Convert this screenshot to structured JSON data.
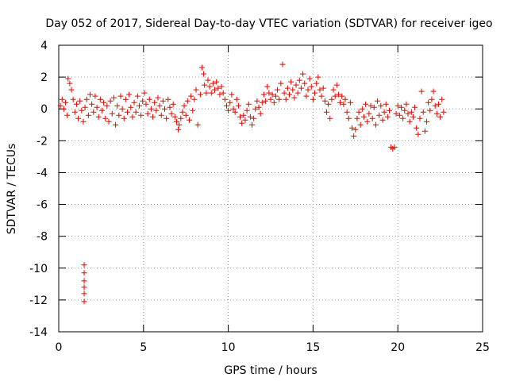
{
  "chart_data": {
    "type": "scatter",
    "title": "Day 052 of 2017, Sidereal Day-to-day VTEC variation (SDTVAR) for receiver igeo",
    "xlabel": "GPS time / hours",
    "ylabel": "SDTVAR / TECUs",
    "xlim": [
      0,
      25
    ],
    "ylim": [
      -14,
      4
    ],
    "xticks": [
      0,
      5,
      10,
      15,
      20,
      25
    ],
    "yticks": [
      -14,
      -12,
      -10,
      -8,
      -6,
      -4,
      -2,
      0,
      2,
      4
    ],
    "grid": true,
    "marker": "+",
    "color": "#ee0000",
    "series": [
      {
        "name": "SDTVAR",
        "points": [
          [
            0.1,
            0.2
          ],
          [
            0.2,
            0.6
          ],
          [
            0.3,
            0.0
          ],
          [
            0.4,
            0.4
          ],
          [
            0.5,
            -0.4
          ],
          [
            0.55,
            1.9
          ],
          [
            0.65,
            1.6
          ],
          [
            0.75,
            1.2
          ],
          [
            0.85,
            0.6
          ],
          [
            0.95,
            -0.2
          ],
          [
            1.05,
            0.3
          ],
          [
            1.15,
            -0.6
          ],
          [
            1.25,
            0.5
          ],
          [
            1.35,
            -0.1
          ],
          [
            1.45,
            -0.8
          ],
          [
            1.5,
            -9.8
          ],
          [
            1.5,
            -10.3
          ],
          [
            1.5,
            -10.8
          ],
          [
            1.5,
            -11.2
          ],
          [
            1.5,
            -11.6
          ],
          [
            1.5,
            -12.1
          ],
          [
            1.55,
            0.1
          ],
          [
            1.65,
            0.6
          ],
          [
            1.75,
            -0.4
          ],
          [
            1.85,
            0.9
          ],
          [
            1.95,
            0.3
          ],
          [
            2.05,
            -0.2
          ],
          [
            2.15,
            0.8
          ],
          [
            2.25,
            0.1
          ],
          [
            2.35,
            -0.5
          ],
          [
            2.45,
            0.6
          ],
          [
            2.55,
            -0.1
          ],
          [
            2.65,
            0.4
          ],
          [
            2.75,
            -0.6
          ],
          [
            2.85,
            0.2
          ],
          [
            2.95,
            -0.8
          ],
          [
            3.05,
            0.5
          ],
          [
            3.15,
            -0.3
          ],
          [
            3.25,
            0.7
          ],
          [
            3.35,
            -1.0
          ],
          [
            3.45,
            0.2
          ],
          [
            3.55,
            -0.4
          ],
          [
            3.65,
            0.8
          ],
          [
            3.75,
            0.0
          ],
          [
            3.85,
            -0.6
          ],
          [
            3.95,
            0.6
          ],
          [
            4.05,
            -0.2
          ],
          [
            4.15,
            0.9
          ],
          [
            4.25,
            0.1
          ],
          [
            4.35,
            -0.5
          ],
          [
            4.45,
            0.4
          ],
          [
            4.55,
            -0.2
          ],
          [
            4.65,
            0.8
          ],
          [
            4.75,
            0.2
          ],
          [
            4.85,
            -0.4
          ],
          [
            4.95,
            0.5
          ],
          [
            5.05,
            1.0
          ],
          [
            5.15,
            0.3
          ],
          [
            5.25,
            -0.3
          ],
          [
            5.35,
            0.6
          ],
          [
            5.45,
            0.0
          ],
          [
            5.55,
            -0.5
          ],
          [
            5.65,
            0.4
          ],
          [
            5.75,
            -0.1
          ],
          [
            5.85,
            0.7
          ],
          [
            5.95,
            0.2
          ],
          [
            6.05,
            -0.4
          ],
          [
            6.15,
            0.5
          ],
          [
            6.25,
            0.0
          ],
          [
            6.35,
            -0.6
          ],
          [
            6.45,
            0.6
          ],
          [
            6.55,
            0.1
          ],
          [
            6.65,
            -0.3
          ],
          [
            6.75,
            0.3
          ],
          [
            6.85,
            -0.5
          ],
          [
            6.95,
            -0.8
          ],
          [
            7.05,
            -1.3
          ],
          [
            7.1,
            -1.0
          ],
          [
            7.2,
            -0.6
          ],
          [
            7.3,
            -0.2
          ],
          [
            7.4,
            0.2
          ],
          [
            7.5,
            -0.4
          ],
          [
            7.6,
            0.5
          ],
          [
            7.7,
            -0.7
          ],
          [
            7.8,
            0.8
          ],
          [
            7.9,
            -0.1
          ],
          [
            8.0,
            0.6
          ],
          [
            8.1,
            1.2
          ],
          [
            8.2,
            -1.0
          ],
          [
            8.35,
            0.9
          ],
          [
            8.45,
            2.6
          ],
          [
            8.55,
            2.2
          ],
          [
            8.6,
            1.5
          ],
          [
            8.7,
            1.0
          ],
          [
            8.8,
            1.8
          ],
          [
            8.9,
            1.4
          ],
          [
            9.0,
            1.0
          ],
          [
            9.1,
            1.6
          ],
          [
            9.2,
            1.2
          ],
          [
            9.3,
            1.7
          ],
          [
            9.4,
            1.3
          ],
          [
            9.5,
            0.9
          ],
          [
            9.6,
            1.4
          ],
          [
            9.7,
            1.0
          ],
          [
            9.8,
            0.6
          ],
          [
            9.9,
            0.2
          ],
          [
            10.0,
            -0.1
          ],
          [
            10.1,
            0.4
          ],
          [
            10.2,
            0.9
          ],
          [
            10.3,
            0.0
          ],
          [
            10.4,
            -0.2
          ],
          [
            10.5,
            0.6
          ],
          [
            10.6,
            0.2
          ],
          [
            10.7,
            -0.5
          ],
          [
            10.8,
            -0.9
          ],
          [
            10.9,
            -0.4
          ],
          [
            11.0,
            -0.7
          ],
          [
            11.1,
            -0.1
          ],
          [
            11.2,
            0.3
          ],
          [
            11.3,
            -0.5
          ],
          [
            11.4,
            -1.0
          ],
          [
            11.5,
            -0.6
          ],
          [
            11.6,
            0.0
          ],
          [
            11.7,
            0.5
          ],
          [
            11.8,
            0.1
          ],
          [
            11.9,
            -0.3
          ],
          [
            12.0,
            0.4
          ],
          [
            12.1,
            0.9
          ],
          [
            12.2,
            0.5
          ],
          [
            12.3,
            1.4
          ],
          [
            12.4,
            1.0
          ],
          [
            12.5,
            0.6
          ],
          [
            12.6,
            0.9
          ],
          [
            12.7,
            0.4
          ],
          [
            12.8,
            0.8
          ],
          [
            12.9,
            1.2
          ],
          [
            13.0,
            0.6
          ],
          [
            13.1,
            1.6
          ],
          [
            13.2,
            2.8
          ],
          [
            13.3,
            1.0
          ],
          [
            13.4,
            0.6
          ],
          [
            13.5,
            1.3
          ],
          [
            13.6,
            0.9
          ],
          [
            13.7,
            1.7
          ],
          [
            13.8,
            1.2
          ],
          [
            13.9,
            0.7
          ],
          [
            14.0,
            1.5
          ],
          [
            14.1,
            1.0
          ],
          [
            14.2,
            1.8
          ],
          [
            14.3,
            1.3
          ],
          [
            14.4,
            2.2
          ],
          [
            14.5,
            1.6
          ],
          [
            14.6,
            0.8
          ],
          [
            14.7,
            1.2
          ],
          [
            14.8,
            1.9
          ],
          [
            14.9,
            1.4
          ],
          [
            15.0,
            0.6
          ],
          [
            15.1,
            1.0
          ],
          [
            15.2,
            1.6
          ],
          [
            15.3,
            2.0
          ],
          [
            15.4,
            1.2
          ],
          [
            15.5,
            0.8
          ],
          [
            15.6,
            1.3
          ],
          [
            15.7,
            0.5
          ],
          [
            15.8,
            -0.2
          ],
          [
            15.9,
            0.3
          ],
          [
            16.0,
            -0.6
          ],
          [
            16.1,
            0.6
          ],
          [
            16.2,
            1.2
          ],
          [
            16.3,
            0.8
          ],
          [
            16.4,
            1.5
          ],
          [
            16.5,
            0.9
          ],
          [
            16.6,
            0.4
          ],
          [
            16.7,
            0.8
          ],
          [
            16.8,
            0.3
          ],
          [
            16.9,
            0.6
          ],
          [
            17.0,
            -0.2
          ],
          [
            17.1,
            -0.6
          ],
          [
            17.2,
            0.4
          ],
          [
            17.3,
            -1.2
          ],
          [
            17.4,
            -1.7
          ],
          [
            17.5,
            -1.3
          ],
          [
            17.6,
            -0.6
          ],
          [
            17.7,
            -0.2
          ],
          [
            17.8,
            -1.0
          ],
          [
            17.9,
            0.0
          ],
          [
            18.0,
            -0.5
          ],
          [
            18.1,
            0.3
          ],
          [
            18.2,
            -0.8
          ],
          [
            18.3,
            -0.3
          ],
          [
            18.4,
            0.2
          ],
          [
            18.5,
            -0.6
          ],
          [
            18.6,
            0.1
          ],
          [
            18.7,
            -1.0
          ],
          [
            18.8,
            0.5
          ],
          [
            18.9,
            -0.4
          ],
          [
            19.0,
            0.2
          ],
          [
            19.1,
            -0.7
          ],
          [
            19.2,
            -0.2
          ],
          [
            19.3,
            0.3
          ],
          [
            19.4,
            -0.5
          ],
          [
            19.5,
            -0.1
          ],
          [
            19.6,
            -2.4
          ],
          [
            19.7,
            -2.5
          ],
          [
            19.8,
            -2.4
          ],
          [
            19.9,
            -0.3
          ],
          [
            20.0,
            0.2
          ],
          [
            20.1,
            -0.4
          ],
          [
            20.2,
            0.1
          ],
          [
            20.3,
            -0.6
          ],
          [
            20.4,
            -0.1
          ],
          [
            20.5,
            0.3
          ],
          [
            20.6,
            -0.3
          ],
          [
            20.7,
            -0.8
          ],
          [
            20.8,
            -0.2
          ],
          [
            20.9,
            -0.5
          ],
          [
            21.0,
            0.1
          ],
          [
            21.1,
            -1.2
          ],
          [
            21.2,
            -1.6
          ],
          [
            21.3,
            -0.6
          ],
          [
            21.4,
            1.1
          ],
          [
            21.5,
            -0.2
          ],
          [
            21.6,
            -1.4
          ],
          [
            21.7,
            -0.8
          ],
          [
            21.8,
            0.4
          ],
          [
            21.9,
            -0.1
          ],
          [
            22.0,
            0.6
          ],
          [
            22.1,
            1.1
          ],
          [
            22.2,
            0.2
          ],
          [
            22.3,
            -0.3
          ],
          [
            22.4,
            0.3
          ],
          [
            22.5,
            -0.5
          ],
          [
            22.6,
            0.6
          ],
          [
            22.7,
            -0.2
          ]
        ]
      }
    ]
  }
}
